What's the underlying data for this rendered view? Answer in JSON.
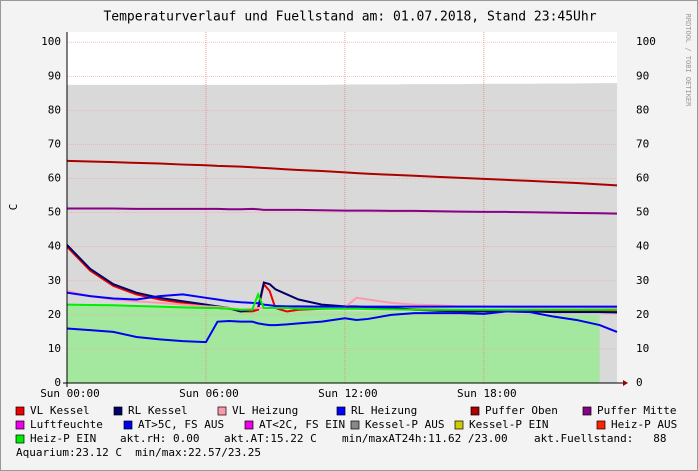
{
  "chart_data": {
    "type": "line",
    "title": "Temperaturverlauf und Fuellstand am: 01.07.2018, Stand 23:45Uhr",
    "ylabel": "C",
    "watermark": "RRDTOOL / TOBI OETIKER",
    "x": [
      0,
      1,
      2,
      3,
      4,
      5,
      6,
      6.5,
      7,
      7.5,
      8,
      8.25,
      8.5,
      8.75,
      9,
      9.5,
      10,
      11,
      12,
      12.5,
      13,
      14,
      15,
      16,
      17,
      18,
      19,
      20,
      21,
      22,
      23,
      23.75
    ],
    "xlim": [
      0,
      23.75
    ],
    "xticks": [
      {
        "value": 0,
        "label": "Sun 00:00"
      },
      {
        "value": 6,
        "label": "Sun 06:00"
      },
      {
        "value": 12,
        "label": "Sun 12:00"
      },
      {
        "value": 18,
        "label": "Sun 18:00"
      }
    ],
    "ylim": [
      0,
      103
    ],
    "yticks": [
      0,
      10,
      20,
      30,
      40,
      50,
      60,
      70,
      80,
      90,
      100
    ],
    "grid": true,
    "areas": [
      {
        "color": "#d9d9d9",
        "values": [
          87.5,
          87.5,
          87.5,
          87.5,
          87.5,
          87.5,
          87.5,
          87.5,
          87.5,
          87.5,
          87.5,
          87.5,
          87.5,
          87.5,
          87.5,
          87.5,
          87.5,
          87.5,
          87.6,
          87.6,
          87.6,
          87.6,
          87.7,
          87.7,
          87.7,
          87.8,
          87.8,
          87.8,
          87.9,
          87.9,
          88,
          88
        ]
      },
      {
        "color": "#a4e8a0",
        "values": [
          23,
          22.9,
          22.7,
          22.5,
          22.3,
          22.1,
          22,
          21.9,
          21.8,
          21.6,
          21.5,
          21.5,
          21.5,
          21.4,
          21.4,
          21.3,
          21.3,
          21.2,
          21.1,
          21,
          21,
          20.9,
          20.8,
          20.7,
          20.6,
          20.5,
          20.4,
          20.3,
          20.2,
          20.1,
          20,
          null
        ]
      }
    ],
    "series": [
      {
        "name": "VL Kessel",
        "color": "#ee0000",
        "values": [
          40,
          33,
          28.5,
          26,
          24.5,
          23.5,
          22.5,
          22,
          21.8,
          21,
          21,
          21.5,
          29,
          27,
          22,
          21,
          21.5,
          21.8,
          22,
          22,
          21.8,
          21.8,
          21.6,
          21.5,
          21.4,
          21.3,
          21.3,
          21.3,
          21.2,
          21.2,
          21.2,
          21.2
        ]
      },
      {
        "name": "RL Kessel",
        "color": "#000066",
        "values": [
          40.5,
          33.5,
          29,
          26.5,
          25,
          24,
          23,
          22.5,
          22,
          21,
          21.5,
          22,
          29.5,
          29,
          27.5,
          26,
          24.5,
          23,
          22.5,
          22.5,
          22.2,
          22,
          21.5,
          21.2,
          21,
          21,
          21,
          21,
          20.8,
          20.8,
          20.8,
          20.7
        ]
      },
      {
        "name": "VL Heizung",
        "color": "#ff99aa",
        "values": [
          27,
          25.5,
          24.5,
          24,
          23.5,
          23,
          22.5,
          22.3,
          22,
          21.5,
          21.7,
          22,
          22,
          22,
          22,
          22,
          22,
          22,
          22.2,
          25,
          24.5,
          23.5,
          23,
          22.8,
          22.5,
          22.5,
          22.3,
          22.2,
          22.2,
          22.2,
          22.1,
          22
        ]
      },
      {
        "name": "RL Heizung",
        "color": "#0000ff",
        "values": [
          26.5,
          25.5,
          24.8,
          24.5,
          25.5,
          26,
          25,
          24.5,
          24,
          23.7,
          23.5,
          23.4,
          23,
          22.8,
          22.6,
          22.5,
          22.5,
          22.4,
          22.4,
          22.4,
          22.4,
          22.4,
          22.4,
          22.4,
          22.4,
          22.4,
          22.4,
          22.4,
          22.4,
          22.4,
          22.4,
          22.4
        ]
      },
      {
        "name": "Puffer Oben",
        "color": "#aa0000",
        "values": [
          65.2,
          65,
          64.8,
          64.6,
          64.4,
          64.1,
          63.9,
          63.7,
          63.6,
          63.5,
          63.3,
          63.2,
          63.1,
          63,
          62.9,
          62.7,
          62.5,
          62.2,
          61.8,
          61.6,
          61.4,
          61.1,
          60.8,
          60.5,
          60.2,
          59.9,
          59.6,
          59.3,
          59,
          58.7,
          58.3,
          58
        ]
      },
      {
        "name": "Puffer Mitte",
        "color": "#880088",
        "values": [
          51.2,
          51.2,
          51.2,
          51.1,
          51.1,
          51.1,
          51.1,
          51.1,
          51,
          51,
          51.1,
          51,
          50.8,
          50.8,
          50.8,
          50.8,
          50.8,
          50.7,
          50.6,
          50.6,
          50.6,
          50.5,
          50.5,
          50.4,
          50.3,
          50.2,
          50.2,
          50.1,
          50,
          49.9,
          49.8,
          49.7
        ]
      },
      {
        "name": "Luftfeuchte",
        "color": "#ee00ee"
      },
      {
        "name": "AT>5C, FS AUS",
        "color": "#0000ee",
        "values": [
          16,
          15.5,
          15,
          13.5,
          12.8,
          12.3,
          12,
          18,
          18.2,
          18,
          18,
          17.5,
          17.2,
          17,
          17,
          17.2,
          17.5,
          18,
          19,
          18.5,
          18.8,
          20,
          20.5,
          20.5,
          20.5,
          20.3,
          21,
          20.8,
          19.5,
          18.5,
          17,
          15
        ]
      },
      {
        "name": "AT<2C, FS EIN",
        "color": "#ee00ee"
      },
      {
        "name": "Kessel-P AUS",
        "color": "#888888"
      },
      {
        "name": "Kessel-P EIN",
        "color": "#cccc00"
      },
      {
        "name": "Heiz-P AUS",
        "color": "#ff2200"
      },
      {
        "name": "Heiz-P EIN",
        "color": "#00ee00",
        "values": [
          23,
          22.9,
          22.8,
          22.6,
          22.4,
          22.2,
          22,
          22,
          21.8,
          21.5,
          21.5,
          26,
          22,
          22,
          22,
          22,
          21.8,
          21.8,
          21.8,
          21.8,
          21.7,
          21.6,
          21.5,
          21.5,
          21.5,
          21.5,
          21.5,
          21.5,
          21.5,
          21.5,
          21.5,
          21.5
        ]
      }
    ],
    "comments": [
      "akt.rH: 0.00",
      "akt.AT:15.22 C",
      "min/maxAT24h:11.62 /23.00",
      "akt.Fuellstand:   88",
      "Aquarium:23.12 C  min/max:22.57/23.25"
    ]
  }
}
